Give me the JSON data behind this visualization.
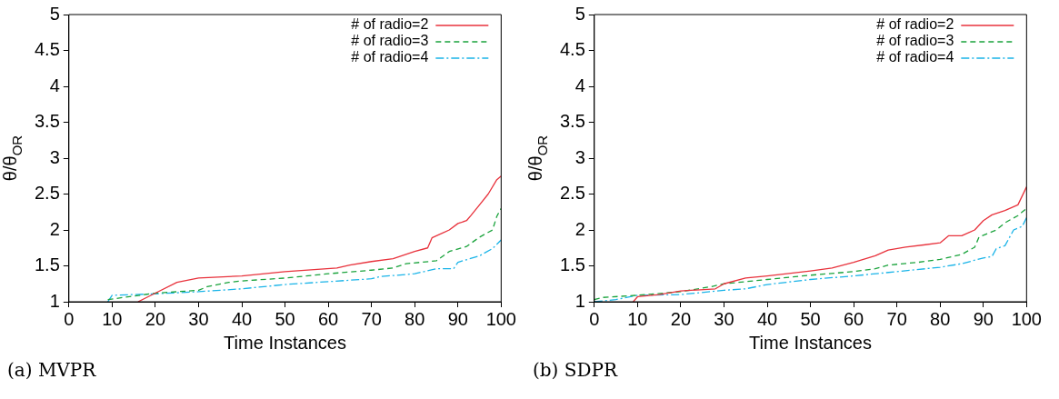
{
  "chart_data": [
    {
      "type": "line",
      "xlabel": "Time Instances",
      "ylabel": "θ/θ$_{OR}$",
      "annotations": [
        "(a) MVPR"
      ],
      "xlim": [
        0,
        100
      ],
      "xticks": [
        0,
        10,
        20,
        30,
        40,
        50,
        60,
        70,
        80,
        90,
        100
      ],
      "ylim": [
        1,
        5
      ],
      "yticks": [
        1,
        1.5,
        2,
        2.5,
        3,
        3.5,
        4,
        4.5,
        5
      ],
      "legend": "top right",
      "grid": false,
      "series": [
        {
          "name": "# of radio=2",
          "color": "#e8323c",
          "line_style": "solid",
          "x": [
            16,
            20,
            25,
            30,
            40,
            50,
            62,
            65,
            70,
            75,
            80,
            83,
            84,
            88,
            90,
            92,
            93,
            95,
            97,
            99,
            100
          ],
          "values": [
            1,
            1.12,
            1.27,
            1.33,
            1.36,
            1.42,
            1.47,
            1.51,
            1.56,
            1.6,
            1.7,
            1.75,
            1.89,
            2,
            2.09,
            2.13,
            2.2,
            2.35,
            2.5,
            2.7,
            2.75
          ]
        },
        {
          "name": "# of radio=3",
          "color": "#1aa33c",
          "line_style": "dashed",
          "x": [
            9,
            20,
            30,
            32,
            37,
            40,
            50,
            60,
            70,
            75,
            78,
            85,
            88,
            92,
            95,
            98,
            99,
            100
          ],
          "values": [
            1.03,
            1.12,
            1.16,
            1.21,
            1.27,
            1.29,
            1.33,
            1.39,
            1.44,
            1.47,
            1.53,
            1.57,
            1.7,
            1.77,
            1.9,
            2,
            2.19,
            2.3
          ]
        },
        {
          "name": "# of radio=4",
          "color": "#1ab4e8",
          "line_style": "dashdot",
          "x": [
            9,
            10,
            20,
            30,
            40,
            50,
            60,
            70,
            72,
            80,
            85,
            89,
            90,
            95,
            98,
            100
          ],
          "values": [
            1,
            1.09,
            1.11,
            1.14,
            1.18,
            1.24,
            1.28,
            1.32,
            1.35,
            1.39,
            1.46,
            1.46,
            1.55,
            1.64,
            1.74,
            1.86
          ]
        }
      ]
    },
    {
      "type": "line",
      "xlabel": "Time Instances",
      "ylabel": "θ/θ$_{OR}$",
      "annotations": [
        "(b) SDPR"
      ],
      "xlim": [
        0,
        100
      ],
      "xticks": [
        0,
        10,
        20,
        30,
        40,
        50,
        60,
        70,
        80,
        90,
        100
      ],
      "ylim": [
        1,
        5
      ],
      "yticks": [
        1,
        1.5,
        2,
        2.5,
        3,
        3.5,
        4,
        4.5,
        5
      ],
      "legend": "top right",
      "grid": false,
      "series": [
        {
          "name": "# of radio=2",
          "color": "#e8323c",
          "line_style": "solid",
          "x": [
            9,
            10,
            15,
            20,
            28,
            30,
            35,
            40,
            50,
            55,
            60,
            65,
            68,
            72,
            80,
            82,
            85,
            88,
            90,
            92,
            95,
            98,
            100
          ],
          "values": [
            1,
            1.07,
            1.1,
            1.15,
            1.18,
            1.25,
            1.33,
            1.36,
            1.43,
            1.47,
            1.55,
            1.64,
            1.72,
            1.76,
            1.82,
            1.92,
            1.92,
            2,
            2.13,
            2.21,
            2.27,
            2.35,
            2.6
          ]
        },
        {
          "name": "# of radio=3",
          "color": "#1aa33c",
          "line_style": "dashed",
          "x": [
            0,
            2,
            10,
            20,
            27,
            30,
            40,
            50,
            60,
            65,
            68,
            75,
            80,
            85,
            88,
            89,
            93,
            95,
            98,
            100
          ],
          "values": [
            1.03,
            1.06,
            1.09,
            1.14,
            1.21,
            1.25,
            1.31,
            1.37,
            1.42,
            1.46,
            1.51,
            1.55,
            1.59,
            1.66,
            1.76,
            1.9,
            2,
            2.1,
            2.2,
            2.3
          ]
        },
        {
          "name": "# of radio=4",
          "color": "#1ab4e8",
          "line_style": "dashdot",
          "x": [
            0,
            5,
            10,
            20,
            30,
            35,
            40,
            50,
            60,
            70,
            80,
            85,
            90,
            92,
            93,
            95,
            97,
            99,
            100
          ],
          "values": [
            1,
            1.03,
            1.09,
            1.1,
            1.16,
            1.18,
            1.24,
            1.31,
            1.36,
            1.42,
            1.48,
            1.53,
            1.61,
            1.63,
            1.74,
            1.78,
            2,
            2.05,
            2.17
          ]
        }
      ]
    }
  ]
}
